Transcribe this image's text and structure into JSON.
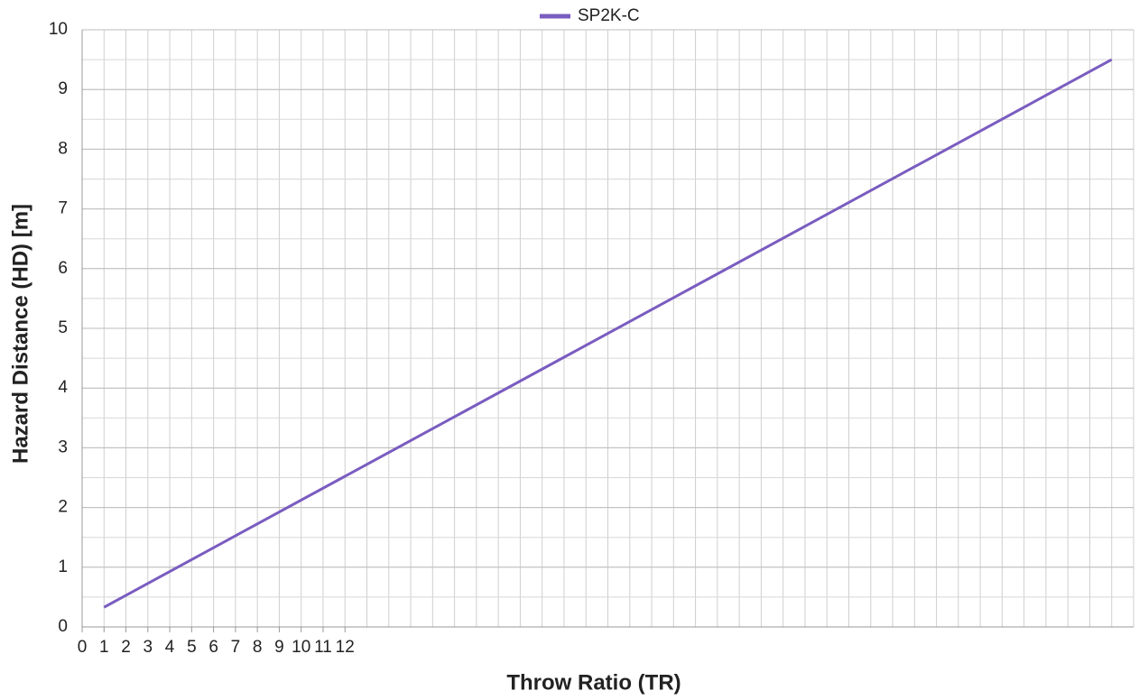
{
  "chart_data": {
    "type": "line",
    "x_label": "Throw Ratio (TR)",
    "y_label": "Hazard Distance (HD) [m]",
    "xlim": [
      0,
      48
    ],
    "xticks": [
      0,
      1,
      2,
      3,
      4,
      5,
      6,
      7,
      8,
      9,
      10,
      11,
      12
    ],
    "ylim": [
      0,
      10
    ],
    "yticks": [
      0,
      1,
      2,
      3,
      4,
      5,
      6,
      7,
      8,
      9,
      10
    ],
    "grid": true,
    "legend": "top",
    "x": [
      1,
      47
    ],
    "series": [
      {
        "name": "SP2K-C",
        "color": "#7a5cc0",
        "values": [
          0.33,
          9.5
        ]
      }
    ]
  }
}
